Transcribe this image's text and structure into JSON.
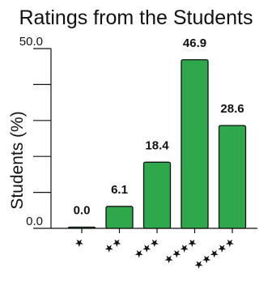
{
  "chart_data": {
    "type": "bar",
    "title": "Ratings from the Students",
    "ylabel": "Students (%)",
    "xlabel": "",
    "categories": [
      "★",
      "★★",
      "★★★",
      "★★★★",
      "★★★★★"
    ],
    "values": [
      0.0,
      6.1,
      18.4,
      46.9,
      28.6
    ],
    "data_labels": [
      "0.0",
      "6.1",
      "18.4",
      "46.9",
      "28.6"
    ],
    "ylim": [
      0,
      50
    ],
    "y_tick_labels": [
      "0.0",
      "50.0"
    ],
    "y_ticks_minor": [
      10,
      20,
      30,
      40
    ],
    "grid": false,
    "legend": "none",
    "colors": {
      "bar_fill": "#2ea84a",
      "bar_stroke": "#111111",
      "axis": "#111111"
    }
  }
}
